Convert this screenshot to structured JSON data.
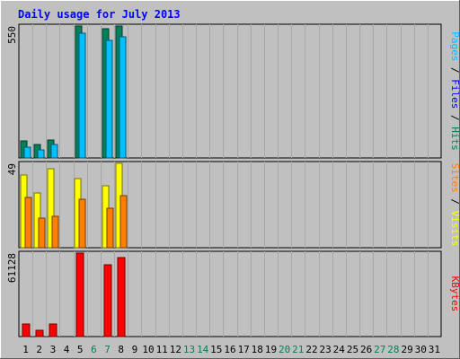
{
  "chart_data": {
    "type": "bar",
    "title": "Daily usage for July 2013",
    "categories": [
      "1",
      "2",
      "3",
      "4",
      "5",
      "6",
      "7",
      "8",
      "9",
      "10",
      "11",
      "12",
      "13",
      "14",
      "15",
      "16",
      "17",
      "18",
      "19",
      "20",
      "21",
      "22",
      "23",
      "24",
      "25",
      "26",
      "27",
      "28",
      "29",
      "30",
      "31"
    ],
    "weekend_days": [
      "6",
      "7",
      "13",
      "14",
      "20",
      "21",
      "27",
      "28"
    ],
    "panels": [
      {
        "name": "pages-files-hits",
        "ylim": [
          0,
          550
        ],
        "max_label": "550",
        "series": [
          {
            "name": "Hits",
            "color": "#00805c",
            "values": [
              70,
              55,
              75,
              0,
              550,
              0,
              537,
              550,
              0,
              0,
              0,
              0,
              0,
              0,
              0,
              0,
              0,
              0,
              0,
              0,
              0,
              0,
              0,
              0,
              0,
              0,
              0,
              0,
              0,
              0,
              0
            ]
          },
          {
            "name": "Files",
            "color": "#0000ff",
            "values": [
              0,
              0,
              0,
              0,
              0,
              0,
              0,
              0,
              0,
              0,
              0,
              0,
              0,
              0,
              0,
              0,
              0,
              0,
              0,
              0,
              0,
              0,
              0,
              0,
              0,
              0,
              0,
              0,
              0,
              0,
              0
            ]
          },
          {
            "name": "Pages",
            "color": "#00c0ff",
            "values": [
              45,
              35,
              55,
              0,
              520,
              0,
              492,
              506,
              0,
              0,
              0,
              0,
              0,
              0,
              0,
              0,
              0,
              0,
              0,
              0,
              0,
              0,
              0,
              0,
              0,
              0,
              0,
              0,
              0,
              0,
              0
            ]
          }
        ]
      },
      {
        "name": "visits-sites",
        "ylim": [
          0,
          49
        ],
        "max_label": "49",
        "series": [
          {
            "name": "Visits",
            "color": "#ffff00",
            "values": [
              42,
              32,
              46,
              0,
              40,
              0,
              36,
              49,
              0,
              0,
              0,
              0,
              0,
              0,
              0,
              0,
              0,
              0,
              0,
              0,
              0,
              0,
              0,
              0,
              0,
              0,
              0,
              0,
              0,
              0,
              0
            ]
          },
          {
            "name": "Sites",
            "color": "#ff8000",
            "values": [
              29,
              17,
              18,
              0,
              28,
              0,
              23,
              30,
              0,
              0,
              0,
              0,
              0,
              0,
              0,
              0,
              0,
              0,
              0,
              0,
              0,
              0,
              0,
              0,
              0,
              0,
              0,
              0,
              0,
              0,
              0
            ]
          }
        ]
      },
      {
        "name": "kbytes",
        "ylim": [
          0,
          61128
        ],
        "max_label": "61128",
        "series": [
          {
            "name": "KBytes",
            "color": "#ff0000",
            "values": [
              9500,
              4400,
              9500,
              0,
              61128,
              0,
              52500,
              58000,
              0,
              0,
              0,
              0,
              0,
              0,
              0,
              0,
              0,
              0,
              0,
              0,
              0,
              0,
              0,
              0,
              0,
              0,
              0,
              0,
              0,
              0,
              0
            ]
          }
        ]
      }
    ]
  },
  "colors": {
    "background": "#c0c0c0",
    "plot_background": "#c0c0c0",
    "title": "#0000ff",
    "weekday_label": "#000000",
    "weekend_label": "#00805c"
  }
}
